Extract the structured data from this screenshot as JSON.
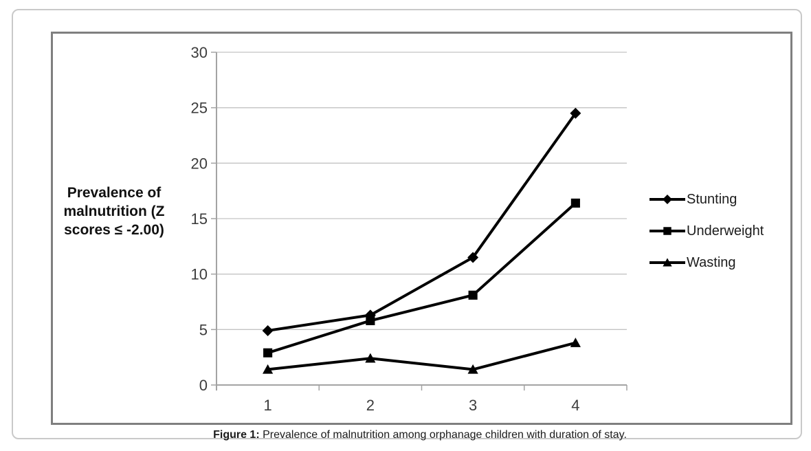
{
  "figure": {
    "caption_label": "Figure 1:",
    "caption_text": " Prevalence of malnutrition among orphanage children with duration of stay."
  },
  "chart_data": {
    "type": "line",
    "title": "",
    "xlabel": "",
    "ylabel": "Prevalence of\nmalnutrition (Z\nscores ≤ -2.00)",
    "x": [
      1,
      2,
      3,
      4
    ],
    "series": [
      {
        "name": "Stunting",
        "marker": "diamond",
        "values": [
          4.9,
          6.3,
          11.5,
          24.5
        ]
      },
      {
        "name": "Underweight",
        "marker": "square",
        "values": [
          2.9,
          5.8,
          8.1,
          16.4
        ]
      },
      {
        "name": "Wasting",
        "marker": "triangle",
        "values": [
          1.4,
          2.4,
          1.4,
          3.8
        ]
      }
    ],
    "ylim": [
      0,
      30
    ],
    "yticks": [
      0,
      5,
      10,
      15,
      20,
      25,
      30
    ],
    "grid": true,
    "legend_position": "right",
    "line_color": "#000000",
    "gridline_color": "#c3c3c3",
    "axis_color": "#a3a3a3",
    "tick_label_color": "#3d3d3d"
  }
}
